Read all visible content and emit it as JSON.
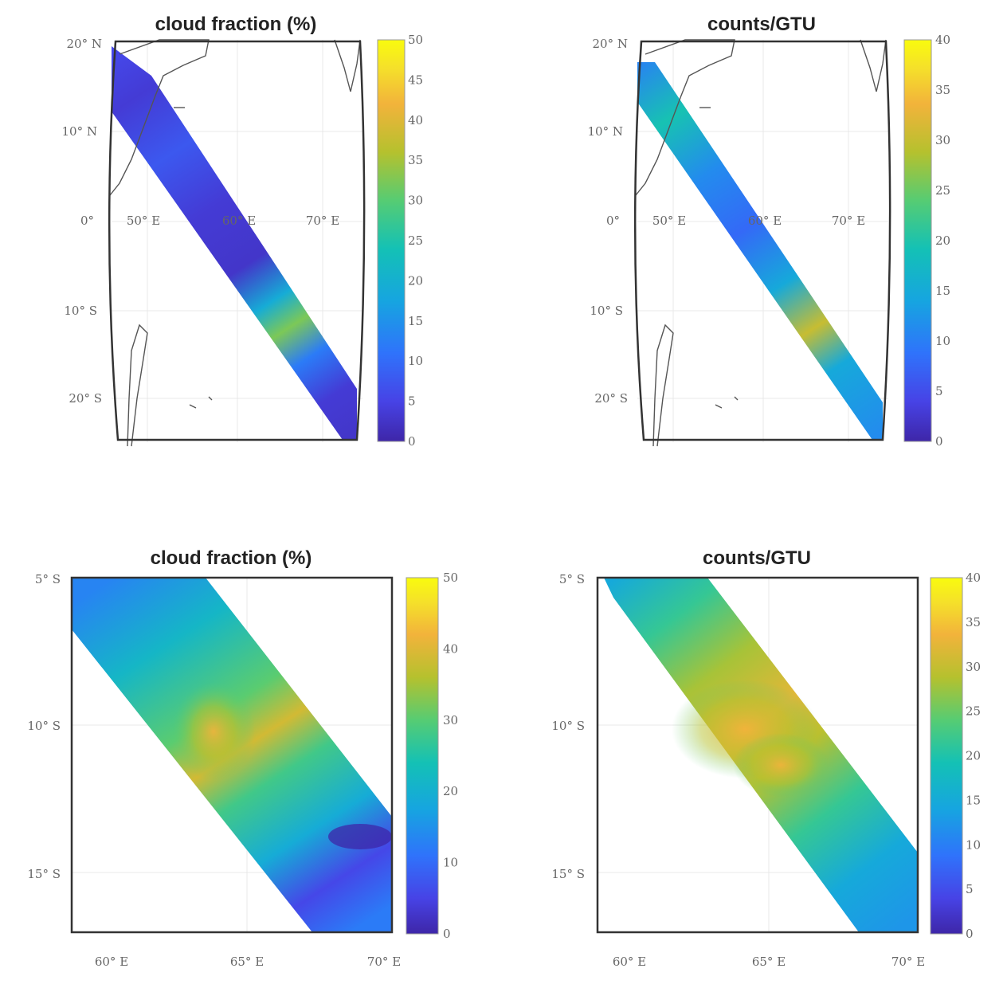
{
  "figure": {
    "colors": {
      "colormap": [
        "#3e26a8",
        "#4743e6",
        "#2f73fb",
        "#16a5e0",
        "#14c1b5",
        "#56cc73",
        "#b5c12e",
        "#f2b33b",
        "#f5e02a",
        "#f9fb0e"
      ],
      "frame": "#333333",
      "coastline": "#555555"
    }
  },
  "chart_data": [
    {
      "type": "heatmap",
      "panel": "top-left",
      "title": "cloud fraction (%)",
      "ylabels": [
        "20° N",
        "10° N",
        "0°",
        "10° S",
        "20° S"
      ],
      "xlabels": [
        "50° E",
        "60° E",
        "70° E"
      ],
      "colorbar": {
        "min": 0,
        "max": 50,
        "ticks": [
          0,
          5,
          10,
          15,
          20,
          25,
          30,
          35,
          40,
          45,
          50
        ]
      },
      "swath_profile": [
        {
          "pos": 0.0,
          "value": 6
        },
        {
          "pos": 0.1,
          "value": 4
        },
        {
          "pos": 0.25,
          "value": 8
        },
        {
          "pos": 0.4,
          "value": 4
        },
        {
          "pos": 0.55,
          "value": 3
        },
        {
          "pos": 0.65,
          "value": 18
        },
        {
          "pos": 0.72,
          "value": 30
        },
        {
          "pos": 0.8,
          "value": 12
        },
        {
          "pos": 0.9,
          "value": 4
        },
        {
          "pos": 1.0,
          "value": 3
        }
      ]
    },
    {
      "type": "heatmap",
      "panel": "top-right",
      "title": "counts/GTU",
      "ylabels": [
        "20° N",
        "10° N",
        "0°",
        "10° S",
        "20° S"
      ],
      "xlabels": [
        "50° E",
        "60° E",
        "70° E"
      ],
      "colorbar": {
        "min": 0,
        "max": 40,
        "ticks": [
          0,
          5,
          10,
          15,
          20,
          25,
          30,
          35,
          40
        ]
      },
      "swath_profile": [
        {
          "pos": 0.0,
          "value": 10
        },
        {
          "pos": 0.15,
          "value": 18
        },
        {
          "pos": 0.3,
          "value": 11
        },
        {
          "pos": 0.45,
          "value": 8
        },
        {
          "pos": 0.6,
          "value": 14
        },
        {
          "pos": 0.72,
          "value": 28
        },
        {
          "pos": 0.82,
          "value": 14
        },
        {
          "pos": 1.0,
          "value": 11
        }
      ]
    },
    {
      "type": "heatmap",
      "panel": "bottom-left",
      "title": "cloud fraction (%)",
      "ylabels": [
        "5° S",
        "10° S",
        "15° S"
      ],
      "xlabels": [
        "60° E",
        "65° E",
        "70° E"
      ],
      "colorbar": {
        "min": 0,
        "max": 50,
        "ticks": [
          0,
          10,
          20,
          30,
          40,
          50
        ]
      },
      "swath_profile": [
        {
          "pos": 0.0,
          "value": 13
        },
        {
          "pos": 0.2,
          "value": 20
        },
        {
          "pos": 0.4,
          "value": 28
        },
        {
          "pos": 0.5,
          "value": 36
        },
        {
          "pos": 0.6,
          "value": 26
        },
        {
          "pos": 0.75,
          "value": 18
        },
        {
          "pos": 0.88,
          "value": 6
        },
        {
          "pos": 1.0,
          "value": 12
        }
      ]
    },
    {
      "type": "heatmap",
      "panel": "bottom-right",
      "title": "counts/GTU",
      "ylabels": [
        "5° S",
        "10° S",
        "15° S"
      ],
      "xlabels": [
        "60° E",
        "65° E",
        "70° E"
      ],
      "colorbar": {
        "min": 0,
        "max": 40,
        "ticks": [
          0,
          5,
          10,
          15,
          20,
          25,
          30,
          35,
          40
        ]
      },
      "swath_profile": [
        {
          "pos": 0.0,
          "value": 14
        },
        {
          "pos": 0.15,
          "value": 20
        },
        {
          "pos": 0.3,
          "value": 26
        },
        {
          "pos": 0.45,
          "value": 30
        },
        {
          "pos": 0.55,
          "value": 27
        },
        {
          "pos": 0.7,
          "value": 20
        },
        {
          "pos": 0.85,
          "value": 14
        },
        {
          "pos": 1.0,
          "value": 12
        }
      ]
    }
  ]
}
